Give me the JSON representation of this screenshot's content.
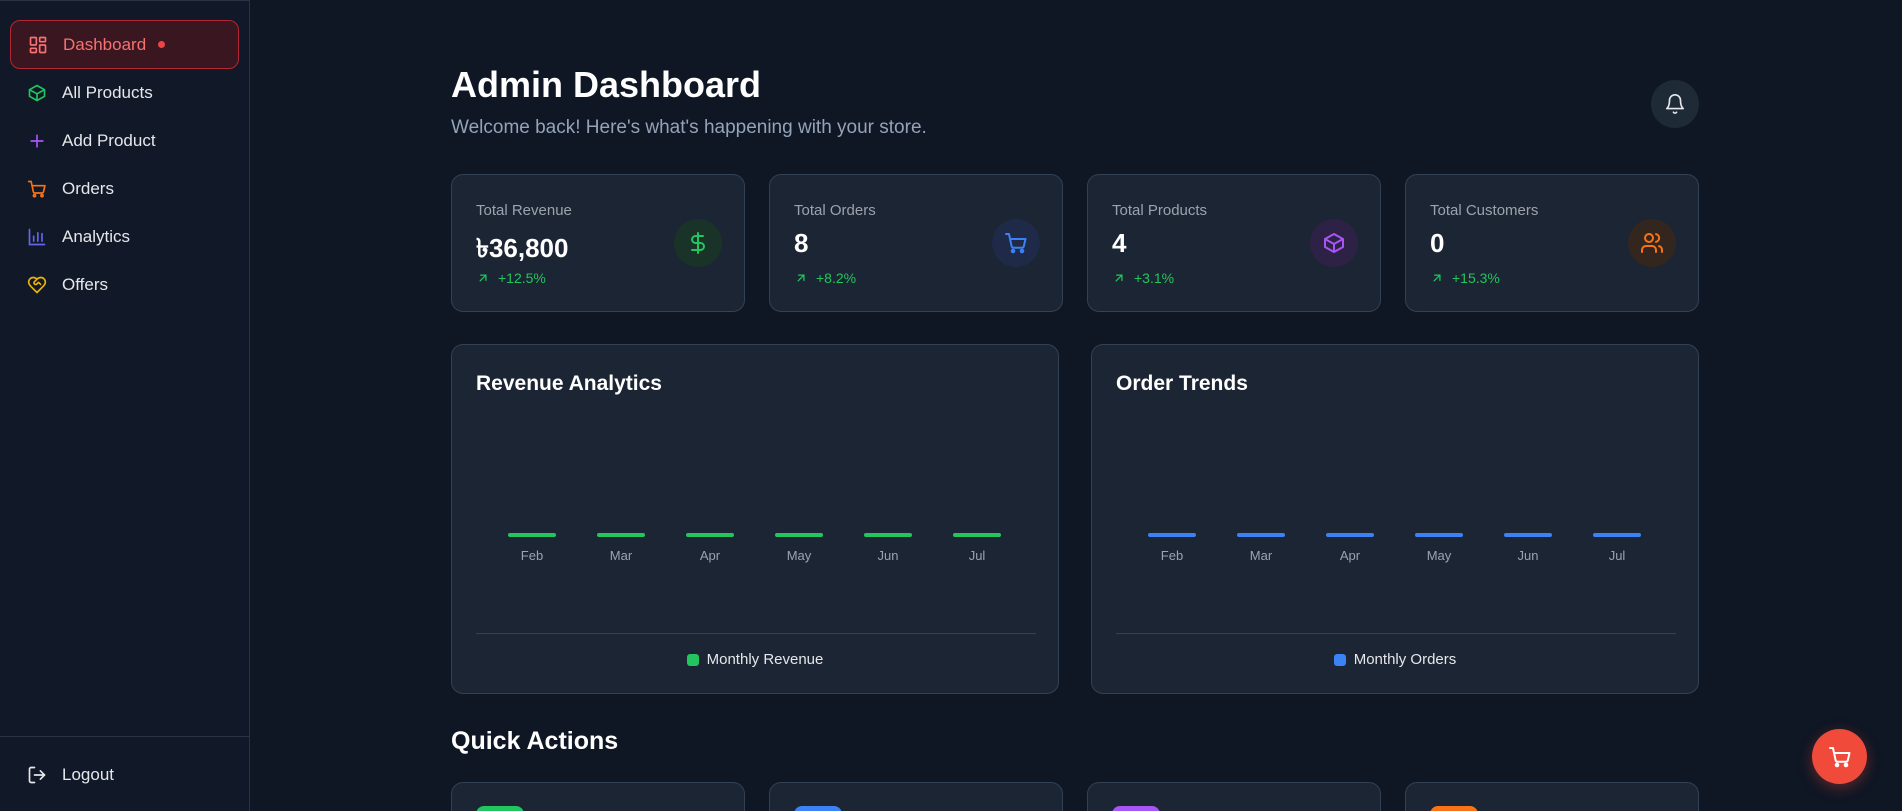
{
  "sidebar": {
    "items": [
      {
        "label": "Dashboard",
        "icon": "dashboard-icon",
        "color": "#f87171",
        "active": true
      },
      {
        "label": "All Products",
        "icon": "box-icon",
        "color": "#22c55e"
      },
      {
        "label": "Add Product",
        "icon": "plus-icon",
        "color": "#a855f7"
      },
      {
        "label": "Orders",
        "icon": "cart-icon",
        "color": "#f97316"
      },
      {
        "label": "Analytics",
        "icon": "bar-chart-icon",
        "color": "#6366f1"
      },
      {
        "label": "Offers",
        "icon": "heart-handshake-icon",
        "color": "#eab308"
      }
    ],
    "logout_label": "Logout"
  },
  "header": {
    "title": "Admin Dashboard",
    "subtitle": "Welcome back! Here's what's happening with your store."
  },
  "stats": [
    {
      "label": "Total Revenue",
      "value": "৳36,800",
      "change": "+12.5%",
      "icon": "dollar-icon",
      "accent": "#22c55e"
    },
    {
      "label": "Total Orders",
      "value": "8",
      "change": "+8.2%",
      "icon": "cart-icon",
      "accent": "#3b82f6"
    },
    {
      "label": "Total Products",
      "value": "4",
      "change": "+3.1%",
      "icon": "box-icon",
      "accent": "#a855f7"
    },
    {
      "label": "Total Customers",
      "value": "0",
      "change": "+15.3%",
      "icon": "users-icon",
      "accent": "#f97316"
    }
  ],
  "charts": {
    "revenue": {
      "title": "Revenue Analytics",
      "legend": "Monthly Revenue",
      "color": "#22c55e"
    },
    "orders": {
      "title": "Order Trends",
      "legend": "Monthly Orders",
      "color": "#3b82f6"
    }
  },
  "chart_data": [
    {
      "type": "bar",
      "title": "Revenue Analytics",
      "categories": [
        "Feb",
        "Mar",
        "Apr",
        "May",
        "Jun",
        "Jul"
      ],
      "series": [
        {
          "name": "Monthly Revenue",
          "values": [
            0,
            0,
            0,
            0,
            0,
            0
          ]
        }
      ],
      "legend": "bottom-center",
      "grid": false
    },
    {
      "type": "bar",
      "title": "Order Trends",
      "categories": [
        "Feb",
        "Mar",
        "Apr",
        "May",
        "Jun",
        "Jul"
      ],
      "series": [
        {
          "name": "Monthly Orders",
          "values": [
            0,
            0,
            0,
            0,
            0,
            0
          ]
        }
      ],
      "legend": "bottom-center",
      "grid": false
    }
  ],
  "quick_actions": {
    "title": "Quick Actions",
    "cards": [
      {
        "accent": "#22c55e"
      },
      {
        "accent": "#3b82f6"
      },
      {
        "accent": "#a855f7"
      },
      {
        "accent": "#f97316"
      }
    ]
  },
  "fab": {
    "icon": "cart-icon",
    "color": "#ef4a3a"
  },
  "notifications": {
    "icon": "bell-icon"
  }
}
